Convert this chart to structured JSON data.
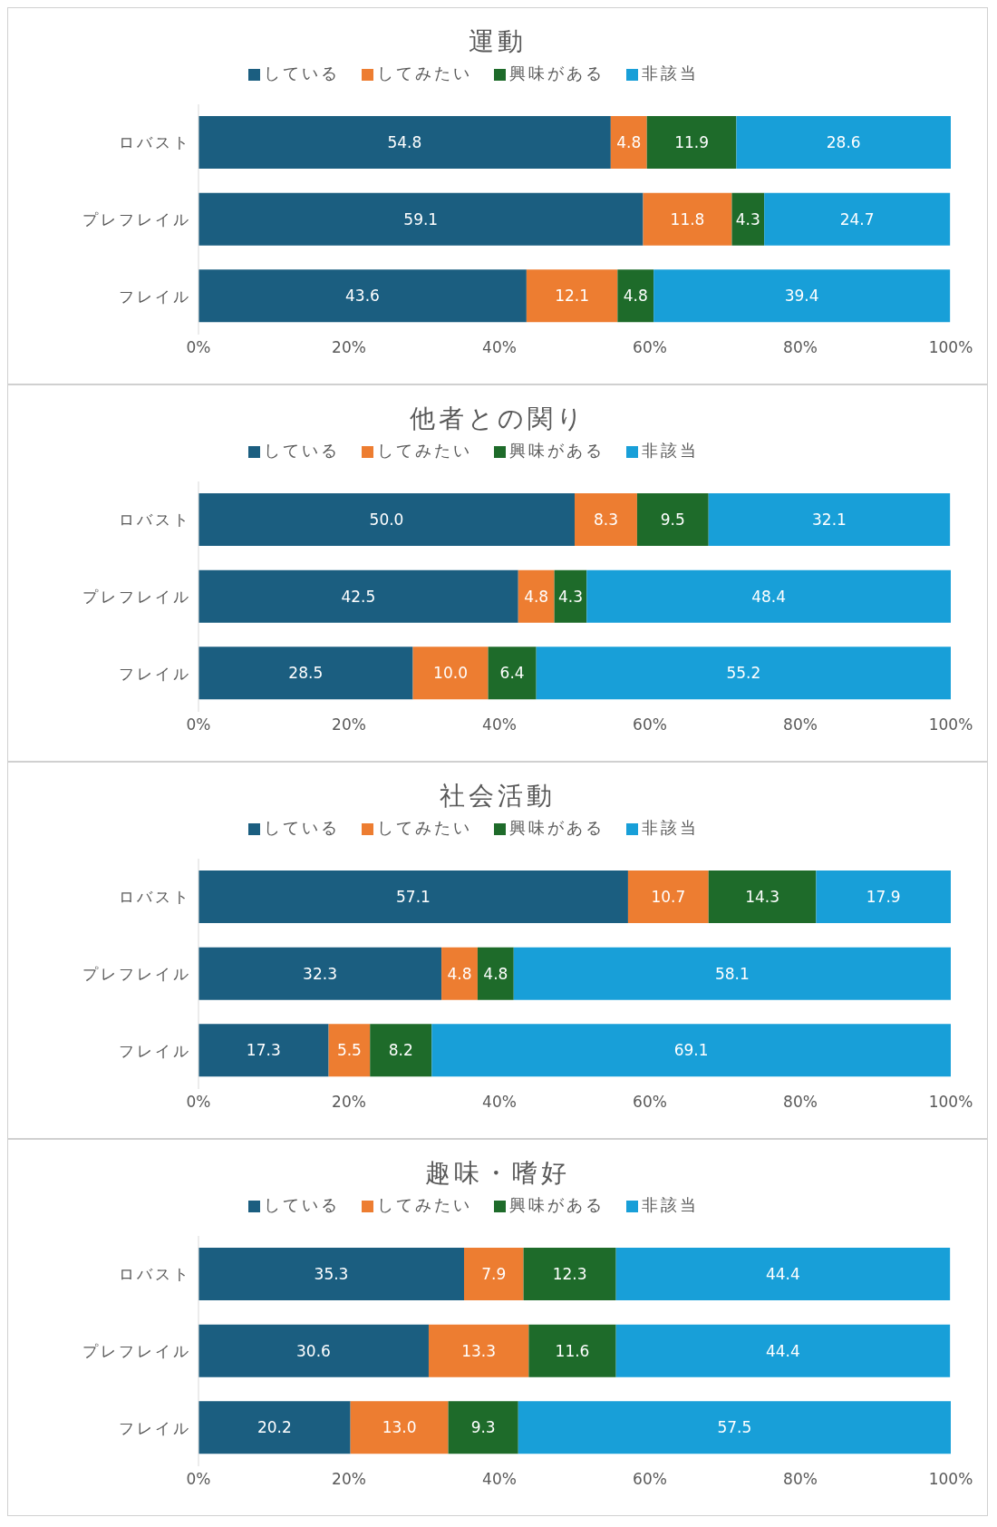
{
  "chart_data": [
    {
      "type": "bar",
      "orientation": "horizontal",
      "stacked": true,
      "title": "運動",
      "categories": [
        "ロバスト",
        "プレフレイル",
        "フレイル"
      ],
      "series": [
        {
          "name": "している",
          "color": "#1b5e80",
          "values": [
            54.8,
            59.1,
            43.6
          ],
          "value_labels": [
            "54.8",
            "59.1",
            "43.6"
          ]
        },
        {
          "name": "してみたい",
          "color": "#ed7d31",
          "values": [
            4.8,
            11.8,
            12.1
          ],
          "value_labels": [
            "4.8",
            "11.8",
            "12.1"
          ]
        },
        {
          "name": "興味がある",
          "color": "#1e6b2a",
          "values": [
            11.9,
            4.3,
            4.8
          ],
          "value_labels": [
            "11.9",
            "4.3",
            "4.8"
          ]
        },
        {
          "name": "非該当",
          "color": "#189fd8",
          "values": [
            28.6,
            24.7,
            39.4
          ],
          "value_labels": [
            "28.6",
            "24.7",
            "39.4"
          ]
        }
      ],
      "xlim": [
        0,
        100
      ],
      "xticks": [
        {
          "value": 0,
          "label": "0%"
        },
        {
          "value": 20,
          "label": "20%"
        },
        {
          "value": 40,
          "label": "40%"
        },
        {
          "value": 60,
          "label": "60%"
        },
        {
          "value": 80,
          "label": "80%"
        },
        {
          "value": 100,
          "label": "100%"
        }
      ],
      "legend": "top",
      "grid": false
    },
    {
      "type": "bar",
      "orientation": "horizontal",
      "stacked": true,
      "title": "他者との関り",
      "categories": [
        "ロバスト",
        "プレフレイル",
        "フレイル"
      ],
      "series": [
        {
          "name": "している",
          "color": "#1b5e80",
          "values": [
            50.0,
            42.5,
            28.5
          ],
          "value_labels": [
            "50.0",
            "42.5",
            "28.5"
          ]
        },
        {
          "name": "してみたい",
          "color": "#ed7d31",
          "values": [
            8.3,
            4.8,
            10.0
          ],
          "value_labels": [
            "8.3",
            "4.8",
            "10.0"
          ]
        },
        {
          "name": "興味がある",
          "color": "#1e6b2a",
          "values": [
            9.5,
            4.3,
            6.4
          ],
          "value_labels": [
            "9.5",
            "4.3",
            "6.4"
          ]
        },
        {
          "name": "非該当",
          "color": "#189fd8",
          "values": [
            32.1,
            48.4,
            55.2
          ],
          "value_labels": [
            "32.1",
            "48.4",
            "55.2"
          ]
        }
      ],
      "xlim": [
        0,
        100
      ],
      "xticks": [
        {
          "value": 0,
          "label": "0%"
        },
        {
          "value": 20,
          "label": "20%"
        },
        {
          "value": 40,
          "label": "40%"
        },
        {
          "value": 60,
          "label": "60%"
        },
        {
          "value": 80,
          "label": "80%"
        },
        {
          "value": 100,
          "label": "100%"
        }
      ],
      "legend": "top",
      "grid": false
    },
    {
      "type": "bar",
      "orientation": "horizontal",
      "stacked": true,
      "title": "社会活動",
      "categories": [
        "ロバスト",
        "プレフレイル",
        "フレイル"
      ],
      "series": [
        {
          "name": "している",
          "color": "#1b5e80",
          "values": [
            57.1,
            32.3,
            17.3
          ],
          "value_labels": [
            "57.1",
            "32.3",
            "17.3"
          ]
        },
        {
          "name": "してみたい",
          "color": "#ed7d31",
          "values": [
            10.7,
            4.8,
            5.5
          ],
          "value_labels": [
            "10.7",
            "4.8",
            "5.5"
          ]
        },
        {
          "name": "興味がある",
          "color": "#1e6b2a",
          "values": [
            14.3,
            4.8,
            8.2
          ],
          "value_labels": [
            "14.3",
            "4.8",
            "8.2"
          ]
        },
        {
          "name": "非該当",
          "color": "#189fd8",
          "values": [
            17.9,
            58.1,
            69.1
          ],
          "value_labels": [
            "17.9",
            "58.1",
            "69.1"
          ]
        }
      ],
      "xlim": [
        0,
        100
      ],
      "xticks": [
        {
          "value": 0,
          "label": "0%"
        },
        {
          "value": 20,
          "label": "20%"
        },
        {
          "value": 40,
          "label": "40%"
        },
        {
          "value": 60,
          "label": "60%"
        },
        {
          "value": 80,
          "label": "80%"
        },
        {
          "value": 100,
          "label": "100%"
        }
      ],
      "legend": "top",
      "grid": false
    },
    {
      "type": "bar",
      "orientation": "horizontal",
      "stacked": true,
      "title": "趣味・嗜好",
      "categories": [
        "ロバスト",
        "プレフレイル",
        "フレイル"
      ],
      "series": [
        {
          "name": "している",
          "color": "#1b5e80",
          "values": [
            35.3,
            30.6,
            20.2
          ],
          "value_labels": [
            "35.3",
            "30.6",
            "20.2"
          ]
        },
        {
          "name": "してみたい",
          "color": "#ed7d31",
          "values": [
            7.9,
            13.3,
            13.0
          ],
          "value_labels": [
            "7.9",
            "13.3",
            "13.0"
          ]
        },
        {
          "name": "興味がある",
          "color": "#1e6b2a",
          "values": [
            12.3,
            11.6,
            9.3
          ],
          "value_labels": [
            "12.3",
            "11.6",
            "9.3"
          ]
        },
        {
          "name": "非該当",
          "color": "#189fd8",
          "values": [
            44.4,
            44.4,
            57.5
          ],
          "value_labels": [
            "44.4",
            "44.4",
            "57.5"
          ]
        }
      ],
      "xlim": [
        0,
        100
      ],
      "xticks": [
        {
          "value": 0,
          "label": "0%"
        },
        {
          "value": 20,
          "label": "20%"
        },
        {
          "value": 40,
          "label": "40%"
        },
        {
          "value": 60,
          "label": "60%"
        },
        {
          "value": 80,
          "label": "80%"
        },
        {
          "value": 100,
          "label": "100%"
        }
      ],
      "legend": "top",
      "grid": false
    }
  ]
}
